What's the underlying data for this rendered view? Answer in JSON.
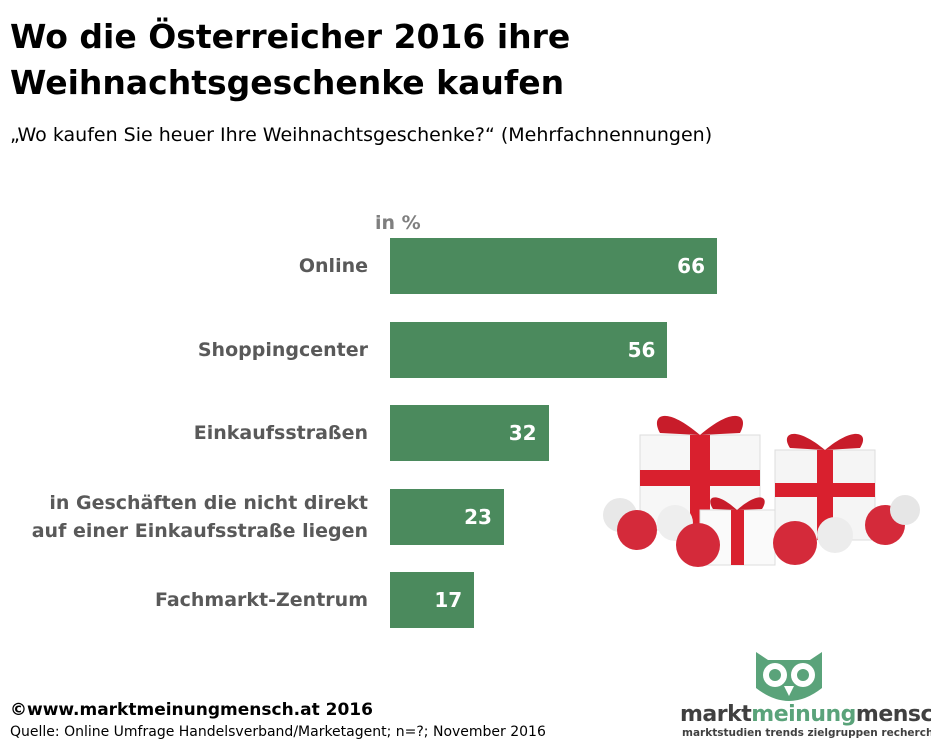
{
  "chart_data": {
    "type": "bar",
    "orientation": "horizontal",
    "title": "Wo die Österreicher 2016 ihre Weihnachtsgeschenke kaufen",
    "subtitle": "„Wo kaufen Sie heuer Ihre Weihnachtsgeschenke?“ (Mehrfachnennungen)",
    "unit_label": "in %",
    "categories": [
      "Online",
      "Shoppingcenter",
      "Einkaufsstraßen",
      "in Geschäften die nicht direkt auf einer Einkaufsstraße liegen",
      "Fachmarkt-Zentrum"
    ],
    "values": [
      66,
      56,
      32,
      23,
      17
    ],
    "color": "#4b8a5d"
  },
  "footer": {
    "copyright": "©www.marktmeinungmensch.at 2016",
    "source": "Quelle: Online Umfrage Handelsverband/Marketagent; n=?; November 2016"
  },
  "logo": {
    "parts": [
      "markt",
      "meinung",
      "mensch"
    ],
    "tagline": "marktstudien trends zielgruppen recherchen"
  }
}
